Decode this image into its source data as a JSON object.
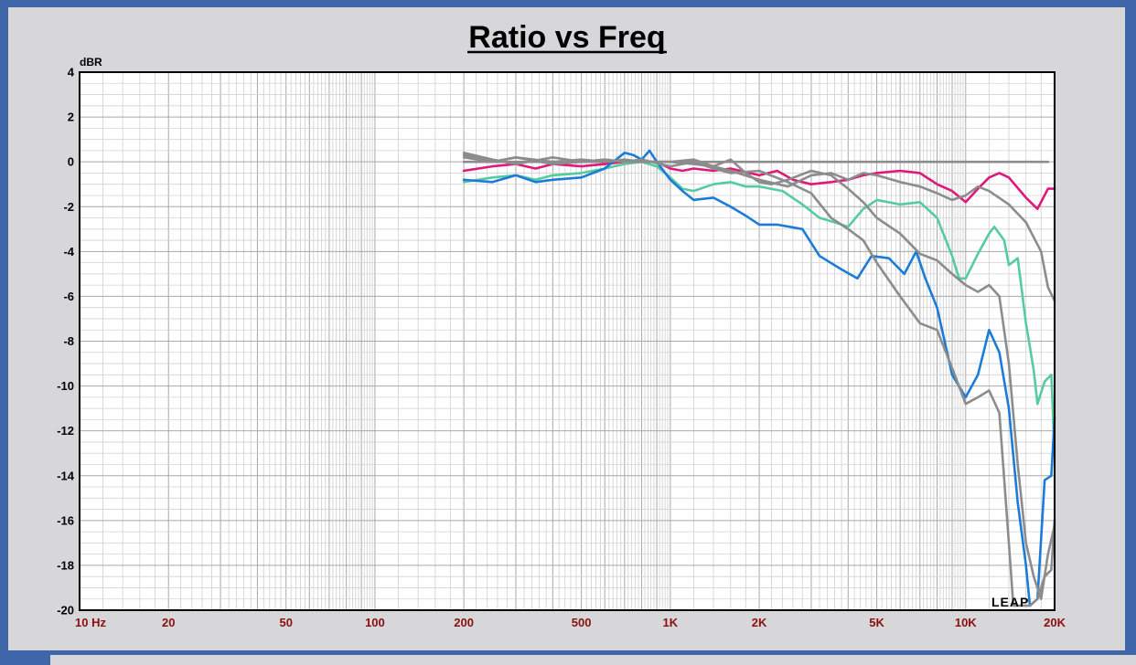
{
  "chart_data": {
    "type": "line",
    "title": "Ratio vs Freq",
    "ylabel": "dBR",
    "xlabel": "",
    "x_scale": "log",
    "xlim": [
      10,
      20000
    ],
    "ylim": [
      -20,
      4
    ],
    "grid": true,
    "y_ticks": [
      "4",
      "2",
      "0",
      "-2",
      "-4",
      "-6",
      "-8",
      "-10",
      "-12",
      "-14",
      "-16",
      "-18",
      "-20"
    ],
    "x_ticks": [
      {
        "value": 10,
        "label": "10  Hz"
      },
      {
        "value": 20,
        "label": "20"
      },
      {
        "value": 50,
        "label": "50"
      },
      {
        "value": 100,
        "label": "100"
      },
      {
        "value": 200,
        "label": "200"
      },
      {
        "value": 500,
        "label": "500"
      },
      {
        "value": 1000,
        "label": "1K"
      },
      {
        "value": 2000,
        "label": "2K"
      },
      {
        "value": 5000,
        "label": "5K"
      },
      {
        "value": 10000,
        "label": "10K"
      },
      {
        "value": 20000,
        "label": "20K"
      }
    ],
    "logo": "LEAP",
    "series": [
      {
        "color": "#8c8c8c",
        "points": [
          [
            200,
            0
          ],
          [
            500,
            0
          ],
          [
            1000,
            0
          ],
          [
            2000,
            0
          ],
          [
            5000,
            0
          ],
          [
            10000,
            0
          ],
          [
            19000,
            0
          ]
        ]
      },
      {
        "color": "#e0187a",
        "points": [
          [
            200,
            -0.4
          ],
          [
            250,
            -0.2
          ],
          [
            300,
            -0.1
          ],
          [
            350,
            -0.3
          ],
          [
            400,
            -0.1
          ],
          [
            500,
            -0.2
          ],
          [
            600,
            -0.1
          ],
          [
            700,
            0
          ],
          [
            800,
            0
          ],
          [
            900,
            0
          ],
          [
            1000,
            -0.3
          ],
          [
            1100,
            -0.4
          ],
          [
            1200,
            -0.3
          ],
          [
            1400,
            -0.4
          ],
          [
            1600,
            -0.3
          ],
          [
            2000,
            -0.6
          ],
          [
            2300,
            -0.4
          ],
          [
            2600,
            -0.8
          ],
          [
            3000,
            -1
          ],
          [
            3500,
            -0.9
          ],
          [
            4000,
            -0.8
          ],
          [
            4500,
            -0.6
          ],
          [
            5000,
            -0.5
          ],
          [
            6000,
            -0.4
          ],
          [
            7000,
            -0.5
          ],
          [
            8000,
            -1
          ],
          [
            9000,
            -1.3
          ],
          [
            10000,
            -1.8
          ],
          [
            11000,
            -1.2
          ],
          [
            12000,
            -0.7
          ],
          [
            13000,
            -0.5
          ],
          [
            14000,
            -0.7
          ],
          [
            16000,
            -1.6
          ],
          [
            17500,
            -2.1
          ],
          [
            19000,
            -1.2
          ],
          [
            20000,
            -1.2
          ]
        ]
      },
      {
        "color": "#55cca0",
        "points": [
          [
            200,
            -0.9
          ],
          [
            250,
            -0.7
          ],
          [
            300,
            -0.6
          ],
          [
            350,
            -0.8
          ],
          [
            400,
            -0.6
          ],
          [
            500,
            -0.5
          ],
          [
            600,
            -0.3
          ],
          [
            700,
            -0.1
          ],
          [
            800,
            0
          ],
          [
            900,
            -0.2
          ],
          [
            1000,
            -0.7
          ],
          [
            1100,
            -1.2
          ],
          [
            1200,
            -1.3
          ],
          [
            1400,
            -1
          ],
          [
            1600,
            -0.9
          ],
          [
            1800,
            -1.1
          ],
          [
            2000,
            -1.1
          ],
          [
            2400,
            -1.3
          ],
          [
            2800,
            -1.9
          ],
          [
            3200,
            -2.5
          ],
          [
            3600,
            -2.7
          ],
          [
            4000,
            -2.9
          ],
          [
            4500,
            -2.1
          ],
          [
            5000,
            -1.7
          ],
          [
            6000,
            -1.9
          ],
          [
            7000,
            -1.8
          ],
          [
            8000,
            -2.5
          ],
          [
            9000,
            -4.2
          ],
          [
            9500,
            -5.2
          ],
          [
            10000,
            -5.2
          ],
          [
            11000,
            -4.1
          ],
          [
            12000,
            -3.2
          ],
          [
            12500,
            -2.9
          ],
          [
            13500,
            -3.5
          ],
          [
            14000,
            -4.6
          ],
          [
            15000,
            -4.3
          ],
          [
            16000,
            -7.2
          ],
          [
            17000,
            -9.3
          ],
          [
            17500,
            -10.8
          ],
          [
            18500,
            -9.8
          ],
          [
            19500,
            -9.5
          ],
          [
            20000,
            -13
          ]
        ]
      },
      {
        "color": "#1a7cd8",
        "points": [
          [
            200,
            -0.8
          ],
          [
            250,
            -0.9
          ],
          [
            300,
            -0.6
          ],
          [
            350,
            -0.9
          ],
          [
            400,
            -0.8
          ],
          [
            500,
            -0.7
          ],
          [
            600,
            -0.3
          ],
          [
            700,
            0.4
          ],
          [
            750,
            0.3
          ],
          [
            800,
            0.1
          ],
          [
            850,
            0.5
          ],
          [
            900,
            0
          ],
          [
            1000,
            -0.8
          ],
          [
            1100,
            -1.3
          ],
          [
            1200,
            -1.7
          ],
          [
            1400,
            -1.6
          ],
          [
            1600,
            -2
          ],
          [
            1800,
            -2.4
          ],
          [
            2000,
            -2.8
          ],
          [
            2300,
            -2.8
          ],
          [
            2800,
            -3
          ],
          [
            3200,
            -4.2
          ],
          [
            3800,
            -4.8
          ],
          [
            4300,
            -5.2
          ],
          [
            4800,
            -4.2
          ],
          [
            5500,
            -4.3
          ],
          [
            6200,
            -5
          ],
          [
            6800,
            -4
          ],
          [
            7300,
            -5.2
          ],
          [
            8000,
            -6.5
          ],
          [
            9000,
            -9.5
          ],
          [
            10000,
            -10.5
          ],
          [
            11000,
            -9.5
          ],
          [
            12000,
            -7.5
          ],
          [
            13000,
            -8.5
          ],
          [
            14000,
            -11
          ],
          [
            15000,
            -15.2
          ],
          [
            16000,
            -18
          ],
          [
            16500,
            -19.8
          ],
          [
            17500,
            -19.5
          ],
          [
            18500,
            -14.2
          ],
          [
            19500,
            -14
          ],
          [
            20000,
            -11.4
          ]
        ]
      },
      {
        "color": "#8c8c8c",
        "points": [
          [
            200,
            0.3
          ],
          [
            250,
            0
          ],
          [
            300,
            0.2
          ],
          [
            400,
            0
          ],
          [
            500,
            0.1
          ],
          [
            600,
            0
          ],
          [
            700,
            0.1
          ],
          [
            800,
            0
          ],
          [
            1000,
            0
          ],
          [
            1200,
            -0.1
          ],
          [
            1400,
            -0.2
          ],
          [
            1600,
            -0.4
          ],
          [
            2000,
            -0.8
          ],
          [
            2500,
            -1.1
          ],
          [
            3000,
            -0.6
          ],
          [
            3500,
            -0.5
          ],
          [
            4000,
            -0.8
          ],
          [
            4500,
            -0.5
          ],
          [
            5000,
            -0.6
          ],
          [
            6000,
            -0.9
          ],
          [
            7000,
            -1.1
          ],
          [
            8000,
            -1.4
          ],
          [
            9000,
            -1.7
          ],
          [
            10000,
            -1.5
          ],
          [
            11000,
            -1.1
          ],
          [
            12000,
            -1.3
          ],
          [
            14000,
            -1.9
          ],
          [
            16000,
            -2.7
          ],
          [
            18000,
            -4
          ],
          [
            19000,
            -5.6
          ],
          [
            20000,
            -6.2
          ]
        ]
      },
      {
        "color": "#8c8c8c",
        "points": [
          [
            200,
            0.2
          ],
          [
            250,
            0
          ],
          [
            300,
            0.2
          ],
          [
            400,
            -0.1
          ],
          [
            500,
            0
          ],
          [
            600,
            0.1
          ],
          [
            700,
            0
          ],
          [
            800,
            0
          ],
          [
            1000,
            0
          ],
          [
            1200,
            0.1
          ],
          [
            1400,
            -0.2
          ],
          [
            1600,
            0.1
          ],
          [
            1800,
            -0.5
          ],
          [
            2000,
            -0.9
          ],
          [
            2200,
            -1
          ],
          [
            2500,
            -0.8
          ],
          [
            3000,
            -0.4
          ],
          [
            3500,
            -0.6
          ],
          [
            4000,
            -1.2
          ],
          [
            4500,
            -1.8
          ],
          [
            5000,
            -2.5
          ],
          [
            6000,
            -3.2
          ],
          [
            7000,
            -4.1
          ],
          [
            8000,
            -4.4
          ],
          [
            9000,
            -5
          ],
          [
            10000,
            -5.5
          ],
          [
            11000,
            -5.8
          ],
          [
            12000,
            -5.5
          ],
          [
            13000,
            -6
          ],
          [
            14000,
            -9
          ],
          [
            15000,
            -13.5
          ],
          [
            16000,
            -17
          ],
          [
            17000,
            -18.5
          ],
          [
            18000,
            -19.5
          ],
          [
            19000,
            -17.5
          ],
          [
            20000,
            -16.2
          ]
        ]
      },
      {
        "color": "#8c8c8c",
        "points": [
          [
            200,
            0.4
          ],
          [
            250,
            0.1
          ],
          [
            300,
            -0.1
          ],
          [
            400,
            0.2
          ],
          [
            500,
            0
          ],
          [
            600,
            0.1
          ],
          [
            700,
            0
          ],
          [
            800,
            0.1
          ],
          [
            1000,
            -0.2
          ],
          [
            1200,
            0
          ],
          [
            1400,
            -0.3
          ],
          [
            1600,
            -0.5
          ],
          [
            2000,
            -0.4
          ],
          [
            2500,
            -0.9
          ],
          [
            3000,
            -1.4
          ],
          [
            3500,
            -2.5
          ],
          [
            4000,
            -3
          ],
          [
            4500,
            -3.5
          ],
          [
            5000,
            -4.5
          ],
          [
            6000,
            -6
          ],
          [
            7000,
            -7.2
          ],
          [
            8000,
            -7.5
          ],
          [
            9000,
            -9.2
          ],
          [
            10000,
            -10.8
          ],
          [
            11000,
            -10.5
          ],
          [
            12000,
            -10.2
          ],
          [
            13000,
            -11.2
          ],
          [
            14000,
            -17
          ],
          [
            14500,
            -19.8
          ],
          [
            15500,
            -19.8
          ],
          [
            16500,
            -19.8
          ],
          [
            17500,
            -19.5
          ],
          [
            18500,
            -18.5
          ],
          [
            19500,
            -18.2
          ],
          [
            20000,
            -16
          ]
        ]
      }
    ]
  }
}
